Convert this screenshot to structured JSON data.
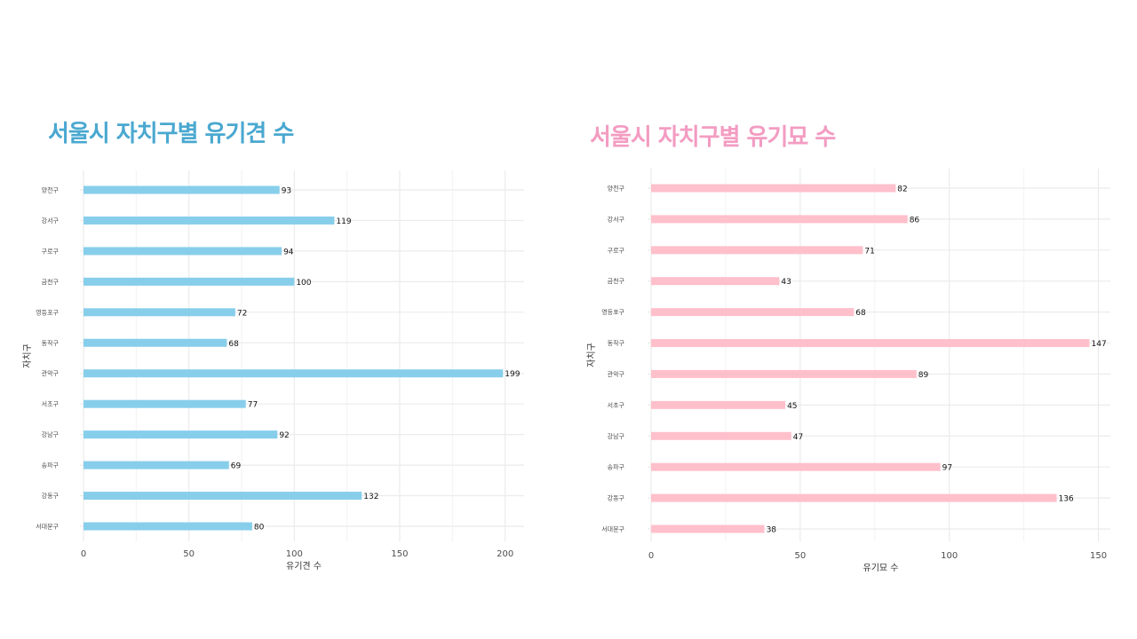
{
  "colors": {
    "dogs_title": "#4aa8d0",
    "cats_title": "#f39cc2"
  },
  "chart_data": [
    {
      "type": "bar",
      "orientation": "horizontal",
      "title": "서울시 자치구별 유기견 수",
      "xlabel": "유기견 수",
      "ylabel": "자치구",
      "categories": [
        "양천구",
        "강서구",
        "구로구",
        "금천구",
        "영등포구",
        "동작구",
        "관악구",
        "서초구",
        "강남구",
        "송파구",
        "강동구",
        "서대문구"
      ],
      "values": [
        93,
        119,
        94,
        100,
        72,
        68,
        199,
        77,
        92,
        69,
        132,
        80
      ],
      "xlim": [
        0,
        209
      ],
      "xticks": [
        0,
        50,
        100,
        150,
        200
      ],
      "bar_color": "#87ceeb",
      "grid": true
    },
    {
      "type": "bar",
      "orientation": "horizontal",
      "title": "서울시 자치구별 유기묘 수",
      "xlabel": "유기묘 수",
      "ylabel": "자치구",
      "categories": [
        "양천구",
        "강서구",
        "구로구",
        "금천구",
        "영등포구",
        "동작구",
        "관악구",
        "서초구",
        "강남구",
        "송파구",
        "강동구",
        "서대문구"
      ],
      "values": [
        82,
        86,
        71,
        43,
        68,
        147,
        89,
        45,
        47,
        97,
        136,
        38
      ],
      "xlim": [
        0,
        154
      ],
      "xticks": [
        0,
        50,
        100,
        150
      ],
      "bar_color": "#ffc0cb",
      "grid": true
    }
  ]
}
